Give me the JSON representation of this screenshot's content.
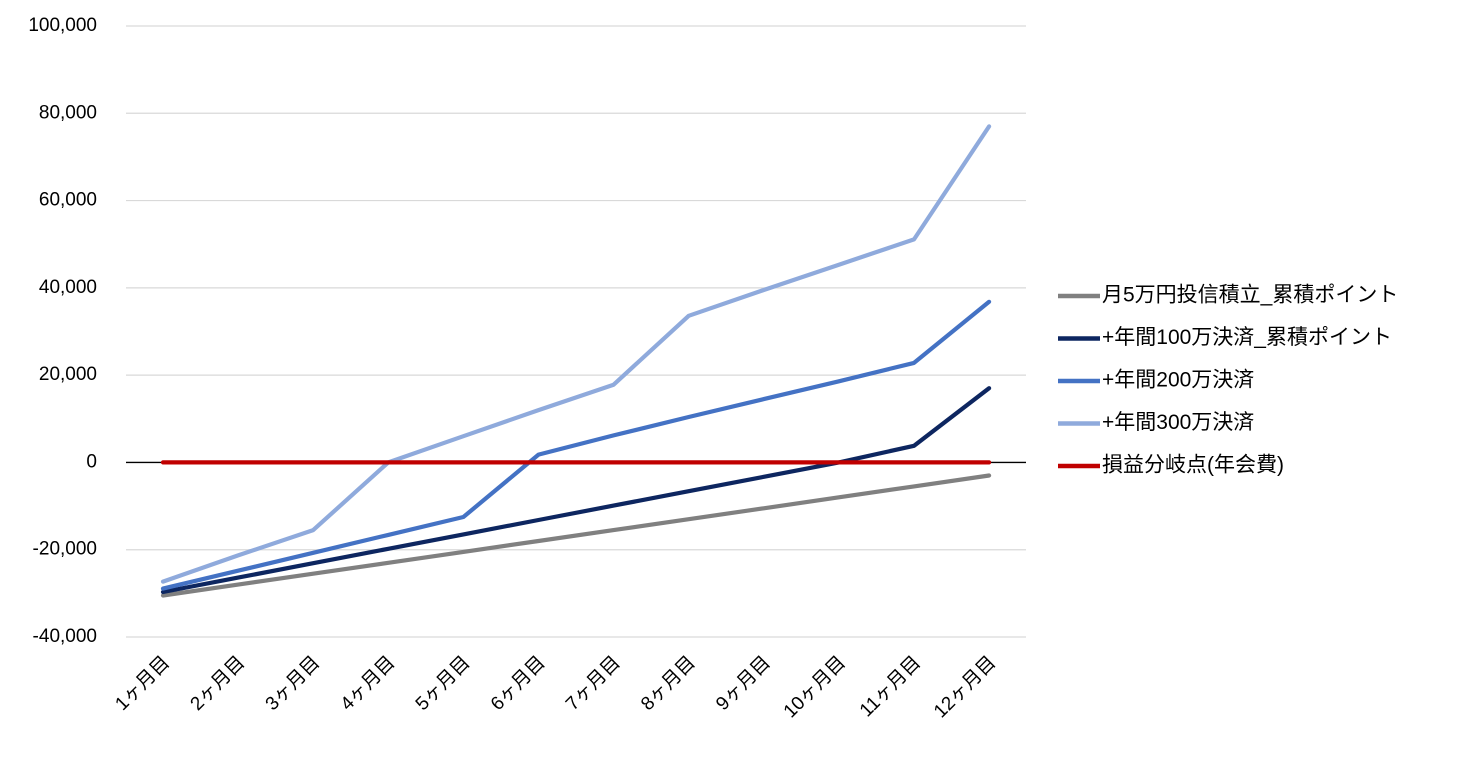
{
  "chart_data": {
    "type": "line",
    "title": "",
    "xlabel": "",
    "ylabel": "",
    "ylim": [
      -40000,
      100000
    ],
    "y_ticks": [
      100000,
      80000,
      60000,
      40000,
      20000,
      0,
      -20000,
      -40000
    ],
    "y_tick_labels": [
      "100,000",
      "80,000",
      "60,000",
      "40,000",
      "20,000",
      "0",
      "-20,000",
      "-40,000"
    ],
    "negative_tick_color": "#ff0000",
    "grid": true,
    "grid_color": "#d9d9d9",
    "legend_position": "right",
    "categories": [
      "1ヶ月目",
      "2ヶ月目",
      "3ヶ月目",
      "4ヶ月目",
      "5ヶ月目",
      "6ヶ月目",
      "7ヶ月目",
      "8ヶ月目",
      "9ヶ月目",
      "10ヶ月目",
      "11ヶ月目",
      "12ヶ月目"
    ],
    "series": [
      {
        "name": "月5万円投信積立_累積ポイント",
        "color": "#808080",
        "values": [
          -30500,
          -28000,
          -25500,
          -23000,
          -20500,
          -18000,
          -15500,
          -13000,
          -10500,
          -8000,
          -5500,
          -3000
        ]
      },
      {
        "name": "+年間100万決済_累積ポイント",
        "color": "#0d2660",
        "values": [
          -29700,
          -26400,
          -23100,
          -19800,
          -16500,
          -13200,
          -9900,
          -6600,
          -3300,
          0,
          3800,
          17000
        ]
      },
      {
        "name": "+年間200万決済",
        "color": "#4472c4",
        "values": [
          -28900,
          -24800,
          -20700,
          -16600,
          -12500,
          1800,
          6200,
          10400,
          14500,
          18600,
          22800,
          36800
        ]
      },
      {
        "name": "+年間300万決済",
        "color": "#8faadc",
        "values": [
          -27300,
          -21300,
          -15500,
          0,
          6000,
          12000,
          17800,
          33600,
          39500,
          45300,
          51100,
          77000
        ]
      },
      {
        "name": "損益分岐点(年会費)",
        "color": "#c00000",
        "values": [
          0,
          0,
          0,
          0,
          0,
          0,
          0,
          0,
          0,
          0,
          0,
          0
        ]
      }
    ]
  }
}
